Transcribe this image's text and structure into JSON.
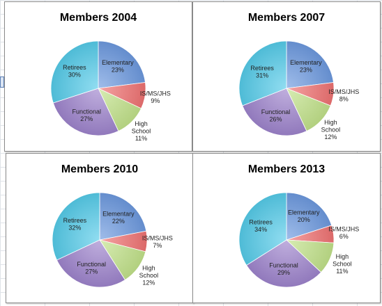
{
  "colors": {
    "Elementary": "#6d99df",
    "IS/MS/JHS": "#ef7272",
    "High School": "#c2e28a",
    "Functional": "#9e84cc",
    "Retirees": "#55cbe9"
  },
  "chart_data": [
    {
      "type": "pie",
      "title": "Members 2004",
      "slices": [
        {
          "name": "Elementary",
          "label_lines": [
            "Elementary"
          ],
          "value": 23
        },
        {
          "name": "IS/MS/JHS",
          "label_lines": [
            "IS/MS/JHS"
          ],
          "value": 9
        },
        {
          "name": "High School",
          "label_lines": [
            "High",
            "School"
          ],
          "value": 11
        },
        {
          "name": "Functional",
          "label_lines": [
            "Functional"
          ],
          "value": 27
        },
        {
          "name": "Retirees",
          "label_lines": [
            "Retirees"
          ],
          "value": 30
        }
      ]
    },
    {
      "type": "pie",
      "title": "Members 2007",
      "slices": [
        {
          "name": "Elementary",
          "label_lines": [
            "Elementary"
          ],
          "value": 23
        },
        {
          "name": "IS/MS/JHS",
          "label_lines": [
            "IS/MS/JHS"
          ],
          "value": 8
        },
        {
          "name": "High School",
          "label_lines": [
            "High",
            "School"
          ],
          "value": 12
        },
        {
          "name": "Functional",
          "label_lines": [
            "Functional"
          ],
          "value": 26
        },
        {
          "name": "Retirees",
          "label_lines": [
            "Retirees"
          ],
          "value": 31
        }
      ]
    },
    {
      "type": "pie",
      "title": "Members 2010",
      "slices": [
        {
          "name": "Elementary",
          "label_lines": [
            "Elementary"
          ],
          "value": 22
        },
        {
          "name": "IS/MS/JHS",
          "label_lines": [
            "IS/MS/JHS"
          ],
          "value": 7
        },
        {
          "name": "High School",
          "label_lines": [
            "High",
            "School"
          ],
          "value": 12
        },
        {
          "name": "Functional",
          "label_lines": [
            "Functional"
          ],
          "value": 27
        },
        {
          "name": "Retirees",
          "label_lines": [
            "Retirees"
          ],
          "value": 32
        }
      ]
    },
    {
      "type": "pie",
      "title": "Members 2013",
      "slices": [
        {
          "name": "Elementary",
          "label_lines": [
            "Elementary"
          ],
          "value": 20
        },
        {
          "name": "IS/MS/JHS",
          "label_lines": [
            "IS/MS/JHS"
          ],
          "value": 6
        },
        {
          "name": "High School",
          "label_lines": [
            "High",
            "School"
          ],
          "value": 11
        },
        {
          "name": "Functional",
          "label_lines": [
            "Functional"
          ],
          "value": 29
        },
        {
          "name": "Retirees",
          "label_lines": [
            "Retirees"
          ],
          "value": 34
        }
      ]
    }
  ]
}
